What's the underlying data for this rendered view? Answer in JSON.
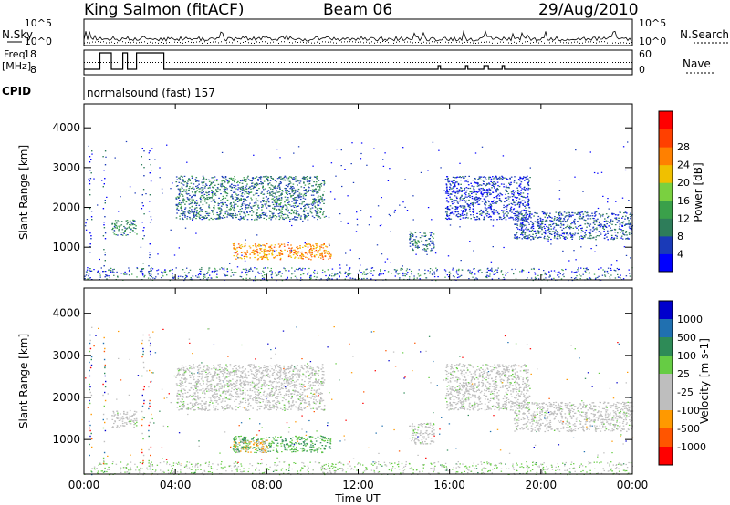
{
  "header": {
    "station": "King Salmon (fitACF)",
    "beam": "Beam 06",
    "date": "29/Aug/2010"
  },
  "left_labels": {
    "nsky": "N.Sky",
    "freq_line1": "Freq.",
    "freq_line2": "[MHz]",
    "cpid": "CPID"
  },
  "right_labels": {
    "nsearch": "N.Search",
    "nave": "Nave"
  },
  "noise_axis": {
    "ticks_left": [
      "10^5",
      "10^0"
    ],
    "ticks_right": [
      "10^5",
      "10^0"
    ]
  },
  "freq_axis": {
    "ticks_left": [
      "18",
      "8"
    ],
    "ticks_right": [
      "60",
      "0"
    ]
  },
  "cpid_text": "normalsound (fast) 157",
  "colors": {
    "power_scale": [
      "#0000ff",
      "#1a3ab8",
      "#2e7d5a",
      "#3aa04a",
      "#7ad040",
      "#f0c000",
      "#ff8000",
      "#ff4000",
      "#ff0000"
    ],
    "velocity_scale": [
      "#0000cc",
      "#2070b0",
      "#2e8b57",
      "#66cc44",
      "#bebebe",
      "#bebebe",
      "#ff9900",
      "#ff5500",
      "#ff0000"
    ]
  },
  "chart_data": [
    {
      "type": "heatmap",
      "name": "power",
      "xlabel": "",
      "ylabel": "Slant Range [km]",
      "xlim": [
        "00:00",
        "24:00"
      ],
      "ylim": [
        180,
        4600
      ],
      "yticks": [
        "1000",
        "2000",
        "3000",
        "4000"
      ],
      "colorbar_label": "Power [dB]",
      "colorbar_ticks": [
        "4",
        "8",
        "12",
        "16",
        "20",
        "24",
        "28"
      ],
      "regions": [
        {
          "t0": 6.5,
          "t1": 10.8,
          "r0": 700,
          "r1": 1100,
          "value": 26
        },
        {
          "t0": 4.0,
          "t1": 10.5,
          "r0": 1700,
          "r1": 2800,
          "value": 10
        },
        {
          "t0": 1.2,
          "t1": 2.3,
          "r0": 1300,
          "r1": 1700,
          "value": 12
        },
        {
          "t0": 14.2,
          "t1": 15.3,
          "r0": 900,
          "r1": 1400,
          "value": 10
        },
        {
          "t0": 18.8,
          "t1": 24.0,
          "r0": 1200,
          "r1": 1900,
          "value": 8
        },
        {
          "t0": 15.8,
          "t1": 19.5,
          "r0": 1700,
          "r1": 2800,
          "value": 6
        }
      ]
    },
    {
      "type": "heatmap",
      "name": "velocity",
      "xlabel": "Time UT",
      "ylabel": "Slant Range [km]",
      "xlim": [
        "00:00",
        "24:00"
      ],
      "ylim": [
        180,
        4600
      ],
      "xticks": [
        "00:00",
        "04:00",
        "08:00",
        "12:00",
        "16:00",
        "20:00",
        "00:00"
      ],
      "yticks": [
        "1000",
        "2000",
        "3000",
        "4000"
      ],
      "colorbar_label": "Velocity [m s-1]",
      "colorbar_ticks": [
        "1000",
        "500",
        "100",
        "25",
        "-25",
        "-100",
        "-500",
        "-1000"
      ],
      "regions": [
        {
          "t0": 6.5,
          "t1": 10.8,
          "r0": 700,
          "r1": 1100,
          "value": 100
        },
        {
          "t0": 6.5,
          "t1": 8.0,
          "r0": 700,
          "r1": 1000,
          "value": -100
        },
        {
          "t0": 4.0,
          "t1": 10.5,
          "r0": 1700,
          "r1": 2800,
          "value": 0
        },
        {
          "t0": 1.2,
          "t1": 2.3,
          "r0": 1300,
          "r1": 1700,
          "value": 0
        },
        {
          "t0": 14.2,
          "t1": 15.3,
          "r0": 900,
          "r1": 1400,
          "value": 0
        },
        {
          "t0": 18.8,
          "t1": 24.0,
          "r0": 1200,
          "r1": 1900,
          "value": 0
        },
        {
          "t0": 15.8,
          "t1": 19.5,
          "r0": 1700,
          "r1": 2800,
          "value": 0
        }
      ]
    }
  ]
}
